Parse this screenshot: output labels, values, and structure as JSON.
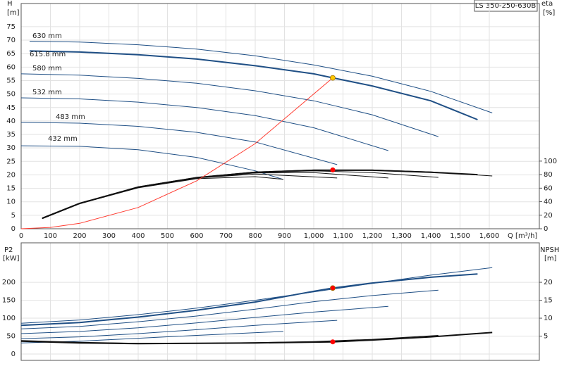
{
  "chart_data": [
    {
      "type": "line",
      "annotation": "LS 350-250-630B",
      "y_label": "H",
      "y_unit": "[m]",
      "y2_label": "eta",
      "y2_unit": "[%]",
      "x_label": "Q [m³/h]",
      "xlim": [
        0,
        1771
      ],
      "ylim": [
        0,
        83.6
      ],
      "y2lim": [
        0,
        333
      ],
      "xticks": [
        0,
        100,
        200,
        300,
        400,
        500,
        600,
        700,
        800,
        900,
        {
          "value": 1000,
          "label": "1,000"
        },
        {
          "value": 1100,
          "label": "1,100"
        },
        {
          "value": 1200,
          "label": "1,200"
        },
        {
          "value": 1300,
          "label": "1,300"
        },
        {
          "value": 1400,
          "label": "1,400"
        },
        {
          "value": 1500,
          "label": "1,500"
        },
        {
          "value": 1600,
          "label": "1,600"
        }
      ],
      "yticks": [
        0,
        5,
        10,
        15,
        20,
        25,
        30,
        35,
        40,
        45,
        50,
        55,
        60,
        65,
        70,
        75
      ],
      "y2ticks": [
        0,
        20,
        40,
        60,
        80,
        100
      ],
      "grid": true,
      "series": [
        {
          "name": "630 mm",
          "color": "#1f4f85",
          "width": 1,
          "x": [
            29,
            200,
            400,
            600,
            800,
            1000,
            1200,
            1400,
            1610
          ],
          "values": [
            69.6,
            69.3,
            68.3,
            66.7,
            64.2,
            60.8,
            56.6,
            51,
            43
          ]
        },
        {
          "name": "615.8 mm",
          "color": "#1f4f85",
          "width": 2,
          "x": [
            29,
            200,
            400,
            600,
            800,
            1000,
            1065,
            1200,
            1400,
            1560
          ],
          "values": [
            66,
            65.6,
            64.6,
            63,
            60.5,
            57.5,
            56,
            53,
            47.5,
            40.5
          ]
        },
        {
          "name": "580 mm",
          "color": "#1f4f85",
          "width": 1,
          "x": [
            0,
            200,
            400,
            600,
            800,
            1000,
            1200,
            1426
          ],
          "values": [
            57.5,
            57,
            55.8,
            54,
            51.2,
            47.5,
            42.3,
            34.2
          ]
        },
        {
          "name": "532 mm",
          "color": "#1f4f85",
          "width": 1,
          "x": [
            0,
            200,
            400,
            600,
            800,
            1000,
            1255
          ],
          "values": [
            48.6,
            48.2,
            47,
            45,
            42,
            37.5,
            29
          ]
        },
        {
          "name": "483 mm",
          "color": "#1f4f85",
          "width": 1,
          "x": [
            0,
            200,
            400,
            600,
            800,
            1080
          ],
          "values": [
            39.5,
            39.2,
            38,
            35.8,
            32.2,
            23.8
          ]
        },
        {
          "name": "432 mm",
          "color": "#1f4f85",
          "width": 1,
          "x": [
            0,
            200,
            400,
            600,
            800,
            896
          ],
          "values": [
            30.8,
            30.6,
            29.3,
            26.5,
            21.5,
            18.3
          ]
        },
        {
          "color": "#111111",
          "width": 1,
          "axis": "y2",
          "x": [
            72,
            200,
            400,
            600,
            800,
            1000,
            1200,
            1400,
            1610
          ],
          "values": [
            16,
            38,
            62,
            76,
            84,
            87,
            87,
            84,
            78
          ]
        },
        {
          "color": "#111111",
          "width": 2,
          "axis": "y2",
          "x": [
            72,
            200,
            400,
            600,
            800,
            1000,
            1200,
            1400,
            1560
          ],
          "values": [
            15.5,
            37.5,
            61.5,
            75.5,
            83.5,
            86.5,
            86.5,
            83.5,
            80
          ]
        },
        {
          "color": "#111111",
          "width": 1,
          "axis": "y2",
          "x": [
            72,
            200,
            400,
            600,
            800,
            1000,
            1200,
            1426
          ],
          "values": [
            15,
            37,
            61,
            75,
            83,
            85.5,
            83,
            76
          ]
        },
        {
          "color": "#111111",
          "width": 1,
          "axis": "y2",
          "x": [
            72,
            200,
            400,
            600,
            800,
            1000,
            1255
          ],
          "values": [
            15,
            37,
            61,
            75,
            82.5,
            83,
            75
          ]
        },
        {
          "color": "#111111",
          "width": 1,
          "axis": "y2",
          "x": [
            72,
            200,
            400,
            600,
            800,
            1080
          ],
          "values": [
            15,
            37,
            61,
            75,
            81,
            75
          ]
        },
        {
          "color": "#111111",
          "width": 1,
          "axis": "y2",
          "x": [
            72,
            200,
            400,
            600,
            800,
            896
          ],
          "values": [
            15,
            37,
            60.5,
            74,
            77,
            73
          ]
        },
        {
          "color": "#ff3b30",
          "width": 1,
          "x": [
            0,
            100,
            200,
            400,
            600,
            800,
            1065
          ],
          "values": [
            0,
            0.5,
            2,
            7.9,
            17.8,
            31.6,
            56
          ]
        }
      ],
      "markers": [
        {
          "x": 1065,
          "y": 56,
          "color": "#ffc800"
        },
        {
          "x": 1065,
          "y": 87,
          "axis": "y2",
          "color": "#ff0000"
        }
      ]
    },
    {
      "type": "line",
      "y_label": "P2",
      "y_unit": "[kW]",
      "y2_label": "NPSH",
      "y2_unit": "[m]",
      "xlim": [
        0,
        1771
      ],
      "ylim": [
        -17.6,
        310
      ],
      "y2lim": [
        -1.76,
        31
      ],
      "yticks": [
        0,
        50,
        100,
        150,
        200
      ],
      "y2ticks": [
        5,
        10,
        15,
        20
      ],
      "grid": true,
      "series": [
        {
          "color": "#1f4f85",
          "width": 1,
          "x": [
            0,
            200,
            400,
            600,
            800,
            1000,
            1200,
            1400,
            1610
          ],
          "values": [
            86,
            95,
            110,
            128,
            150,
            173,
            197,
            220,
            241
          ]
        },
        {
          "color": "#1f4f85",
          "width": 2,
          "x": [
            0,
            200,
            400,
            600,
            800,
            1000,
            1065,
            1200,
            1400,
            1560
          ],
          "values": [
            80,
            88,
            103,
            122,
            145,
            175,
            184,
            198,
            214,
            223
          ]
        },
        {
          "color": "#1f4f85",
          "width": 1,
          "x": [
            0,
            200,
            400,
            600,
            800,
            1000,
            1200,
            1426
          ],
          "values": [
            70,
            77,
            90,
            106,
            125,
            146,
            163,
            178
          ]
        },
        {
          "color": "#1f4f85",
          "width": 1,
          "x": [
            0,
            200,
            400,
            600,
            800,
            1000,
            1255
          ],
          "values": [
            57,
            63,
            73,
            87,
            102,
            117,
            133
          ]
        },
        {
          "color": "#1f4f85",
          "width": 1,
          "x": [
            0,
            200,
            400,
            600,
            800,
            1080
          ],
          "values": [
            43,
            48,
            57,
            68,
            80,
            94
          ]
        },
        {
          "color": "#1f4f85",
          "width": 1,
          "x": [
            0,
            200,
            400,
            600,
            896
          ],
          "values": [
            31,
            36,
            44,
            52,
            63
          ]
        },
        {
          "color": "#111111",
          "width": 2,
          "axis": "y2",
          "x": [
            0,
            200,
            400,
            600,
            800,
            1065,
            1200,
            1400,
            1610
          ],
          "values": [
            3.6,
            3.1,
            2.9,
            3.0,
            3.1,
            3.4,
            3.9,
            4.8,
            6.0
          ]
        },
        {
          "color": "#111111",
          "width": 1,
          "axis": "y2",
          "x": [
            0,
            200,
            400,
            600,
            800,
            1000,
            1200,
            1426
          ],
          "values": [
            3.8,
            3.3,
            3.0,
            3.0,
            3.2,
            3.5,
            4.1,
            5.2
          ]
        }
      ],
      "markers": [
        {
          "x": 1065,
          "y": 184,
          "color": "#ff0000"
        },
        {
          "x": 1065,
          "y": 3.4,
          "axis": "y2",
          "color": "#ff0000"
        }
      ]
    }
  ]
}
